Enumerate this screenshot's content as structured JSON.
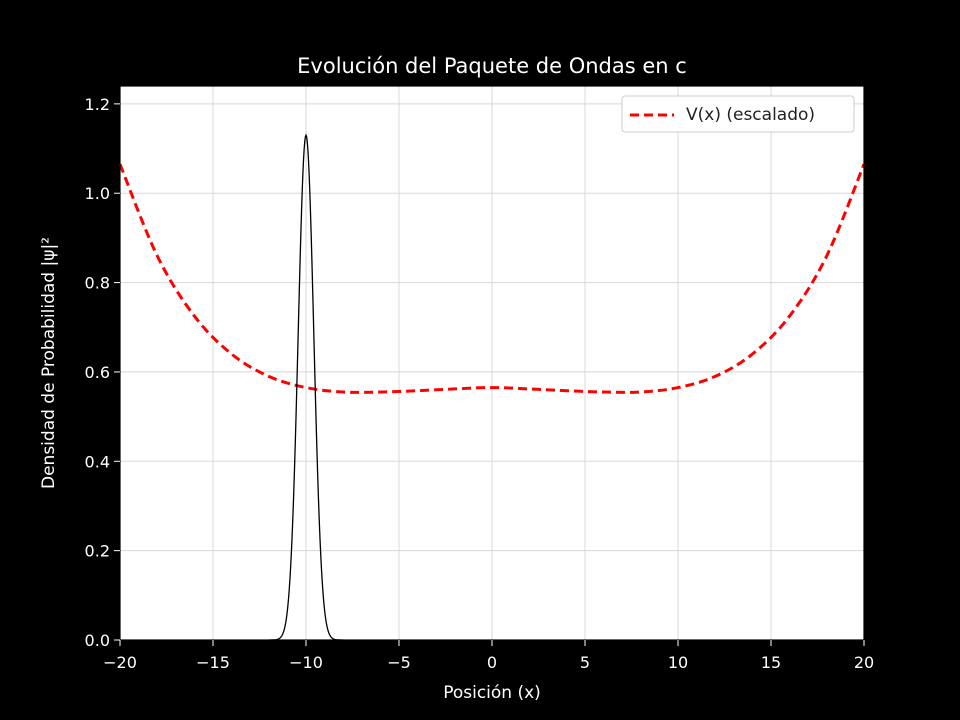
{
  "chart_data": {
    "type": "line",
    "title": "Evolución del Paquete de Ondas en c",
    "xlabel": "Posición (x)",
    "ylabel": "Densidad de Probabilidad |ψ|²",
    "xlim": [
      -20,
      20
    ],
    "ylim": [
      0,
      1.24
    ],
    "xticks": [
      -20,
      -15,
      -10,
      -5,
      0,
      5,
      10,
      15,
      20
    ],
    "xtick_labels": [
      "−20",
      "−15",
      "−10",
      "−5",
      "0",
      "5",
      "10",
      "15",
      "20"
    ],
    "yticks": [
      0.0,
      0.2,
      0.4,
      0.6,
      0.8,
      1.0,
      1.2
    ],
    "ytick_labels": [
      "0.0",
      "0.2",
      "0.4",
      "0.6",
      "0.8",
      "1.0",
      "1.2"
    ],
    "grid": true,
    "legend_position": "top-right",
    "series": [
      {
        "name": "V(x) (escalado)",
        "style": "dashed",
        "color": "#ff0000",
        "x": [
          -20,
          -18,
          -16,
          -14,
          -12,
          -10,
          -8,
          -6,
          -4,
          -2,
          0,
          2,
          4,
          6,
          8,
          10,
          12,
          14,
          16,
          18,
          20
        ],
        "y": [
          1.065,
          0.86,
          0.725,
          0.64,
          0.59,
          0.565,
          0.555,
          0.555,
          0.558,
          0.562,
          0.565,
          0.562,
          0.558,
          0.555,
          0.555,
          0.565,
          0.59,
          0.64,
          0.725,
          0.86,
          1.065
        ]
      },
      {
        "style": "solid",
        "color": "#000000",
        "peak_x": -10,
        "peak_y": 1.13,
        "x": [
          -11.5,
          -11.2,
          -11.0,
          -10.8,
          -10.6,
          -10.4,
          -10.2,
          -10.0,
          -9.8,
          -9.6,
          -9.4,
          -9.2,
          -9.0,
          -8.8,
          -8.5
        ],
        "y": [
          0.0,
          0.01,
          0.04,
          0.12,
          0.32,
          0.64,
          0.98,
          1.13,
          0.98,
          0.64,
          0.32,
          0.12,
          0.04,
          0.01,
          0.0
        ]
      }
    ]
  },
  "colors": {
    "page_background": "#000000",
    "axes_background": "#ffffff",
    "text": "#ffffff",
    "grid": "#d8d8d8",
    "spine": "#000000"
  }
}
